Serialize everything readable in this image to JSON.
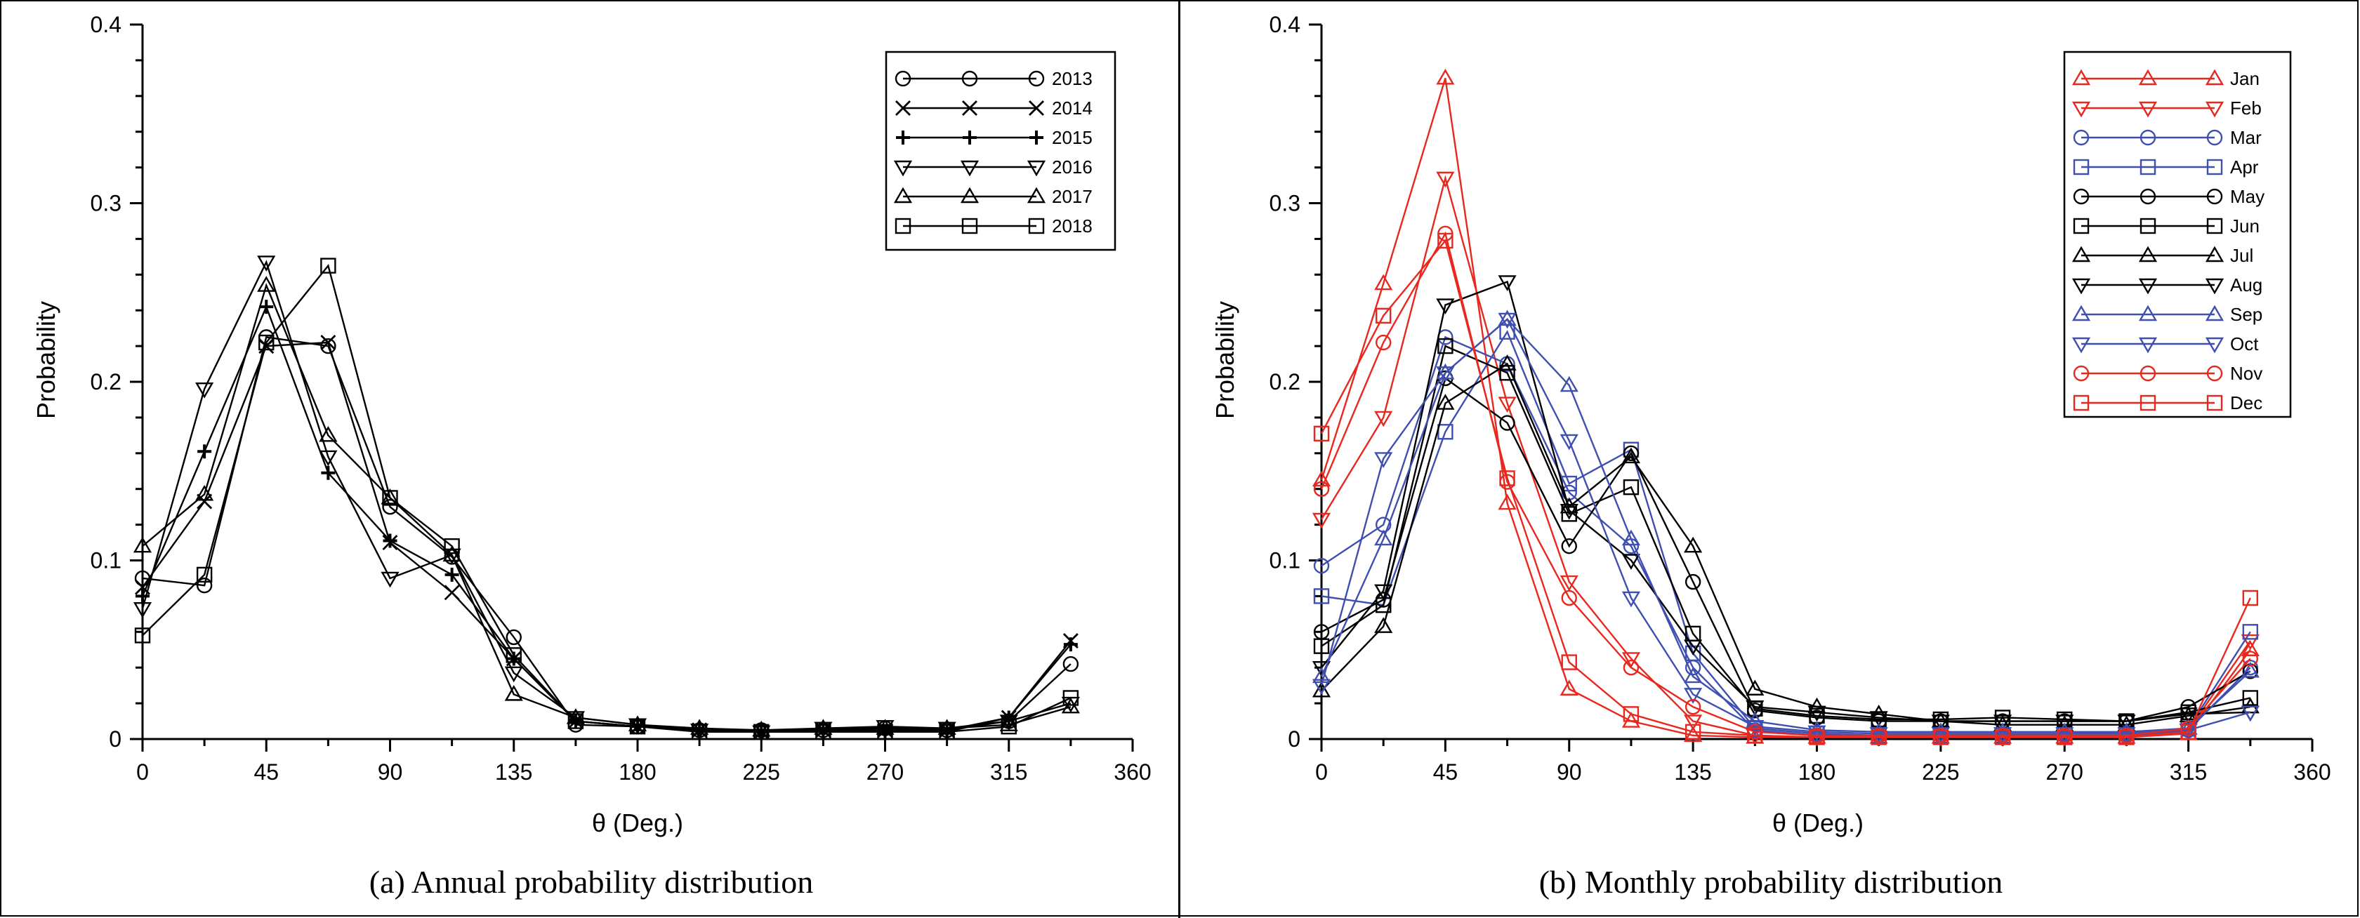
{
  "chart_data": [
    {
      "type": "line",
      "panel": "a",
      "caption": "(a)  Annual probability distribution",
      "xlabel": "θ (Deg.)",
      "ylabel": "Probability",
      "xlim": [
        0,
        360
      ],
      "ylim": [
        0,
        0.4
      ],
      "xticks": [
        0,
        45,
        90,
        135,
        180,
        225,
        270,
        315,
        360
      ],
      "xtick_labels": [
        "0",
        "45",
        "90",
        "135",
        "180",
        "225",
        "270",
        "315",
        "360"
      ],
      "yticks": [
        0,
        0.1,
        0.2,
        0.3,
        0.4
      ],
      "ytick_labels": [
        "0",
        "0.1",
        "0.2",
        "0.3",
        "0.4"
      ],
      "legend_position": "top-right",
      "x": [
        0,
        22.5,
        45,
        67.5,
        90,
        112.5,
        135,
        157.5,
        180,
        202.5,
        225,
        247.5,
        270,
        292.5,
        315,
        337.5
      ],
      "series": [
        {
          "name": "2013",
          "marker": "circle",
          "color": "#000000",
          "values": [
            0.09,
            0.086,
            0.225,
            0.22,
            0.13,
            0.102,
            0.057,
            0.008,
            0.007,
            0.005,
            0.005,
            0.005,
            0.006,
            0.005,
            0.01,
            0.042
          ]
        },
        {
          "name": "2014",
          "marker": "x",
          "color": "#000000",
          "values": [
            0.085,
            0.133,
            0.22,
            0.222,
            0.11,
            0.082,
            0.045,
            0.01,
            0.007,
            0.005,
            0.004,
            0.005,
            0.005,
            0.005,
            0.012,
            0.055
          ]
        },
        {
          "name": "2015",
          "marker": "plus",
          "color": "#000000",
          "values": [
            0.08,
            0.161,
            0.242,
            0.149,
            0.111,
            0.092,
            0.045,
            0.01,
            0.007,
            0.005,
            0.004,
            0.005,
            0.004,
            0.004,
            0.012,
            0.053
          ]
        },
        {
          "name": "2016",
          "marker": "triangle-down",
          "color": "#000000",
          "values": [
            0.073,
            0.196,
            0.267,
            0.158,
            0.09,
            0.103,
            0.037,
            0.012,
            0.008,
            0.005,
            0.004,
            0.006,
            0.007,
            0.006,
            0.01,
            0.02
          ]
        },
        {
          "name": "2017",
          "marker": "triangle-up",
          "color": "#000000",
          "values": [
            0.108,
            0.137,
            0.254,
            0.17,
            0.135,
            0.103,
            0.025,
            0.012,
            0.008,
            0.006,
            0.005,
            0.006,
            0.006,
            0.006,
            0.008,
            0.018
          ]
        },
        {
          "name": "2018",
          "marker": "square",
          "color": "#000000",
          "values": [
            0.058,
            0.092,
            0.222,
            0.265,
            0.135,
            0.108,
            0.047,
            0.01,
            0.007,
            0.004,
            0.004,
            0.004,
            0.004,
            0.004,
            0.007,
            0.023
          ]
        }
      ]
    },
    {
      "type": "line",
      "panel": "b",
      "caption": "(b)  Monthly probability distribution",
      "xlabel": "θ (Deg.)",
      "ylabel": "Probability",
      "xlim": [
        0,
        360
      ],
      "ylim": [
        0,
        0.4
      ],
      "xticks": [
        0,
        45,
        90,
        135,
        180,
        225,
        270,
        315,
        360
      ],
      "xtick_labels": [
        "0",
        "45",
        "90",
        "135",
        "180",
        "225",
        "270",
        "315",
        "360"
      ],
      "yticks": [
        0,
        0.1,
        0.2,
        0.3,
        0.4
      ],
      "ytick_labels": [
        "0",
        "0.1",
        "0.2",
        "0.3",
        "0.4"
      ],
      "legend_position": "top-right",
      "x": [
        0,
        22.5,
        45,
        67.5,
        90,
        112.5,
        135,
        157.5,
        180,
        202.5,
        225,
        247.5,
        270,
        292.5,
        315,
        337.5
      ],
      "series": [
        {
          "name": "Jan",
          "marker": "triangle-up",
          "color": "#e8281e",
          "values": [
            0.145,
            0.255,
            0.37,
            0.132,
            0.028,
            0.01,
            0.002,
            0.001,
            0.001,
            0.001,
            0.001,
            0.001,
            0.001,
            0.001,
            0.003,
            0.05
          ]
        },
        {
          "name": "Feb",
          "marker": "triangle-down",
          "color": "#e8281e",
          "values": [
            0.123,
            0.18,
            0.314,
            0.188,
            0.088,
            0.045,
            0.01,
            0.002,
            0.001,
            0.001,
            0.001,
            0.001,
            0.001,
            0.001,
            0.005,
            0.055
          ]
        },
        {
          "name": "Mar",
          "marker": "circle",
          "color": "#3f4fb0",
          "values": [
            0.097,
            0.12,
            0.225,
            0.21,
            0.138,
            0.108,
            0.04,
            0.005,
            0.002,
            0.002,
            0.002,
            0.002,
            0.002,
            0.002,
            0.005,
            0.04
          ]
        },
        {
          "name": "Apr",
          "marker": "square",
          "color": "#3f4fb0",
          "values": [
            0.08,
            0.075,
            0.172,
            0.228,
            0.143,
            0.162,
            0.048,
            0.006,
            0.003,
            0.002,
            0.002,
            0.002,
            0.003,
            0.003,
            0.006,
            0.06
          ]
        },
        {
          "name": "May",
          "marker": "circle",
          "color": "#000000",
          "values": [
            0.06,
            0.078,
            0.202,
            0.177,
            0.108,
            0.16,
            0.088,
            0.016,
            0.012,
            0.01,
            0.01,
            0.01,
            0.01,
            0.01,
            0.018,
            0.038
          ]
        },
        {
          "name": "Jun",
          "marker": "square",
          "color": "#000000",
          "values": [
            0.052,
            0.075,
            0.22,
            0.205,
            0.126,
            0.141,
            0.059,
            0.017,
            0.013,
            0.011,
            0.011,
            0.012,
            0.011,
            0.01,
            0.015,
            0.023
          ]
        },
        {
          "name": "Jul",
          "marker": "triangle-up",
          "color": "#000000",
          "values": [
            0.027,
            0.063,
            0.188,
            0.21,
            0.13,
            0.158,
            0.108,
            0.028,
            0.018,
            0.014,
            0.01,
            0.008,
            0.008,
            0.008,
            0.013,
            0.018
          ]
        },
        {
          "name": "Aug",
          "marker": "triangle-down",
          "color": "#000000",
          "values": [
            0.04,
            0.083,
            0.243,
            0.256,
            0.128,
            0.1,
            0.052,
            0.018,
            0.015,
            0.012,
            0.01,
            0.01,
            0.01,
            0.01,
            0.014,
            0.015
          ]
        },
        {
          "name": "Sep",
          "marker": "triangle-up",
          "color": "#3f4fb0",
          "values": [
            0.035,
            0.112,
            0.205,
            0.235,
            0.198,
            0.112,
            0.035,
            0.01,
            0.005,
            0.004,
            0.004,
            0.004,
            0.004,
            0.004,
            0.006,
            0.038
          ]
        },
        {
          "name": "Oct",
          "marker": "triangle-down",
          "color": "#3f4fb0",
          "values": [
            0.03,
            0.157,
            0.205,
            0.235,
            0.167,
            0.079,
            0.025,
            0.007,
            0.004,
            0.003,
            0.003,
            0.003,
            0.003,
            0.003,
            0.005,
            0.015
          ]
        },
        {
          "name": "Nov",
          "marker": "circle",
          "color": "#e8281e",
          "values": [
            0.14,
            0.222,
            0.283,
            0.144,
            0.079,
            0.04,
            0.018,
            0.004,
            0.002,
            0.002,
            0.002,
            0.002,
            0.002,
            0.002,
            0.006,
            0.045
          ]
        },
        {
          "name": "Dec",
          "marker": "square",
          "color": "#e8281e",
          "values": [
            0.171,
            0.237,
            0.279,
            0.146,
            0.043,
            0.014,
            0.004,
            0.002,
            0.001,
            0.001,
            0.001,
            0.001,
            0.001,
            0.001,
            0.004,
            0.079
          ]
        }
      ]
    }
  ]
}
